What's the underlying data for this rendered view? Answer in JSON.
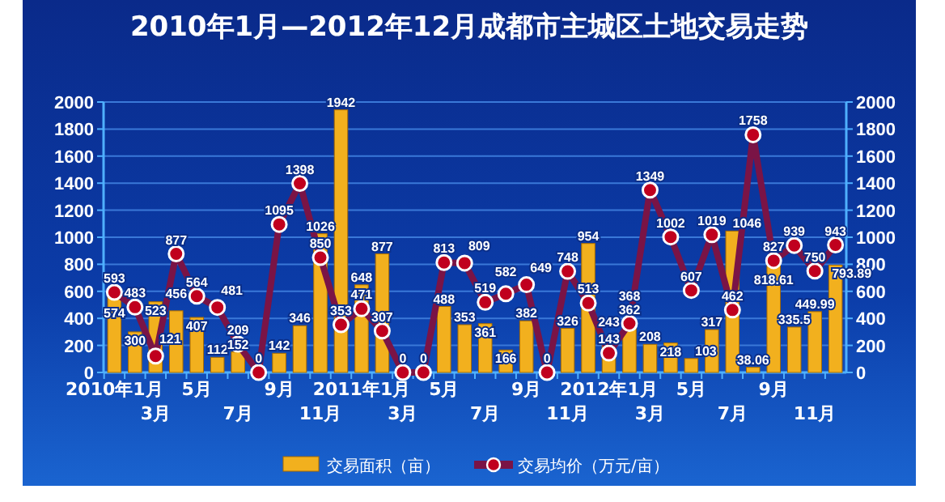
{
  "chart_data": {
    "type": "bar",
    "title": "2010年1月—2012年12月成都市主城区土地交易走势",
    "categories": [
      "2010年1月",
      null,
      "3月",
      null,
      "5月",
      null,
      "7月",
      null,
      "9月",
      null,
      "11月",
      null,
      "2011年1月",
      null,
      "3月",
      null,
      "5月",
      null,
      "7月",
      null,
      "9月",
      null,
      "11月",
      null,
      "2012年1月",
      null,
      "3月",
      null,
      "5月",
      null,
      "7月",
      null,
      "9月",
      null,
      "11月",
      null
    ],
    "series": [
      {
        "name": "交易面积（亩）",
        "type": "bar",
        "color": "#f2b01e",
        "values": [
          574,
          300,
          523,
          456,
          407,
          112,
          152,
          0,
          142,
          346,
          1026,
          1942,
          648,
          877,
          0,
          0,
          488,
          353,
          361,
          166,
          382,
          0,
          326,
          954,
          243,
          368,
          208,
          218,
          103,
          317,
          1046,
          38.06,
          818.61,
          335.5,
          449.99,
          793.89
        ],
        "value_labels": [
          "574",
          "300",
          "523",
          "456",
          "407",
          "112",
          "152",
          null,
          "142",
          "346",
          "1026",
          "1942",
          "648",
          "877",
          null,
          null,
          "488",
          "353",
          "361",
          "166",
          "382",
          null,
          "326",
          "954",
          "243",
          "368",
          "208",
          "218",
          "103",
          "317",
          "1046",
          "38.06",
          "818.61",
          "335.5",
          "449.99",
          "793.89"
        ]
      },
      {
        "name": "交易均价（万元/亩）",
        "type": "line",
        "axis": "y2",
        "color": "#7a1446",
        "values": [
          593,
          483,
          121,
          877,
          564,
          481,
          209,
          0,
          1095,
          1398,
          850,
          353,
          471,
          307,
          0,
          0,
          813,
          809,
          519,
          582,
          649,
          0,
          748,
          513,
          143,
          362,
          1349,
          1002,
          607,
          1019,
          462,
          1758,
          827,
          939,
          750,
          943
        ],
        "value_labels": [
          "593",
          "483",
          "121",
          "877",
          "564",
          "481",
          "209",
          "0",
          "1095",
          "1398",
          "850",
          "353",
          "471",
          "307",
          "0",
          "0",
          "813",
          "809",
          "519",
          "582",
          "649",
          "0",
          "748",
          "513",
          "143",
          "362",
          "1349",
          "1002",
          "607",
          "1019",
          "462",
          "1758",
          "827",
          "939",
          "750",
          "943"
        ]
      }
    ],
    "ylim": [
      0,
      2000
    ],
    "yticks": [
      0,
      200,
      400,
      600,
      800,
      1000,
      1200,
      1400,
      1600,
      1800,
      2000
    ],
    "y2lim": [
      0,
      2000
    ],
    "y2ticks": [
      0,
      200,
      400,
      600,
      800,
      1000,
      1200,
      1400,
      1600,
      1800,
      2000
    ],
    "grid": "y",
    "legend": "bottom",
    "marker": "circle",
    "line_style": "solid"
  }
}
